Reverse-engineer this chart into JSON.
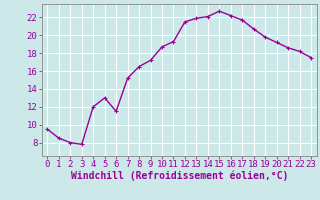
{
  "x": [
    0,
    1,
    2,
    3,
    4,
    5,
    6,
    7,
    8,
    9,
    10,
    11,
    12,
    13,
    14,
    15,
    16,
    17,
    18,
    19,
    20,
    21,
    22,
    23
  ],
  "y": [
    9.5,
    8.5,
    8.0,
    7.8,
    12.0,
    13.0,
    11.5,
    15.2,
    16.5,
    17.2,
    18.7,
    19.3,
    21.5,
    21.9,
    22.1,
    22.7,
    22.2,
    21.7,
    20.7,
    19.8,
    19.2,
    18.6,
    18.2,
    17.5
  ],
  "line_color": "#990099",
  "marker": "+",
  "marker_size": 3,
  "bg_color": "#cce8e8",
  "grid_color": "#ffffff",
  "xlabel": "Windchill (Refroidissement éolien,°C)",
  "xlim": [
    -0.5,
    23.5
  ],
  "ylim": [
    6.5,
    23.5
  ],
  "yticks": [
    8,
    10,
    12,
    14,
    16,
    18,
    20,
    22
  ],
  "xticks": [
    0,
    1,
    2,
    3,
    4,
    5,
    6,
    7,
    8,
    9,
    10,
    11,
    12,
    13,
    14,
    15,
    16,
    17,
    18,
    19,
    20,
    21,
    22,
    23
  ],
  "tick_color": "#990099",
  "label_color": "#990099",
  "axis_color": "#888888",
  "font_size": 6.5,
  "xlabel_fontsize": 7,
  "line_width": 1.0
}
